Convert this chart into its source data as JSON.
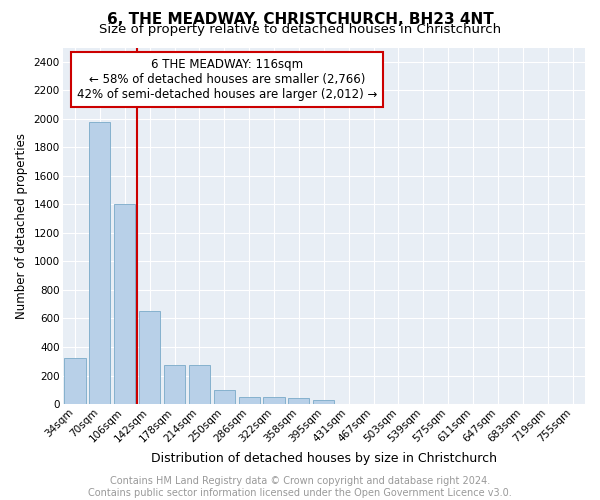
{
  "title": "6, THE MEADWAY, CHRISTCHURCH, BH23 4NT",
  "subtitle": "Size of property relative to detached houses in Christchurch",
  "xlabel": "Distribution of detached houses by size in Christchurch",
  "ylabel": "Number of detached properties",
  "bar_labels": [
    "34sqm",
    "70sqm",
    "106sqm",
    "142sqm",
    "178sqm",
    "214sqm",
    "250sqm",
    "286sqm",
    "322sqm",
    "358sqm",
    "395sqm",
    "431sqm",
    "467sqm",
    "503sqm",
    "539sqm",
    "575sqm",
    "611sqm",
    "647sqm",
    "683sqm",
    "719sqm",
    "755sqm"
  ],
  "bar_values": [
    325,
    1975,
    1400,
    650,
    275,
    275,
    100,
    50,
    50,
    40,
    25,
    0,
    0,
    0,
    0,
    0,
    0,
    0,
    0,
    0,
    0
  ],
  "bar_color": "#b8d0e8",
  "bar_edge_color": "#7aaac8",
  "ylim": [
    0,
    2500
  ],
  "yticks": [
    0,
    200,
    400,
    600,
    800,
    1000,
    1200,
    1400,
    1600,
    1800,
    2000,
    2200,
    2400
  ],
  "vline_color": "#cc0000",
  "vline_x": 2.5,
  "annotation_line1": "6 THE MEADWAY: 116sqm",
  "annotation_line2": "← 58% of detached houses are smaller (2,766)",
  "annotation_line3": "42% of semi-detached houses are larger (2,012) →",
  "annotation_box_color": "#ffffff",
  "annotation_box_edge": "#cc0000",
  "footer_text": "Contains HM Land Registry data © Crown copyright and database right 2024.\nContains public sector information licensed under the Open Government Licence v3.0.",
  "bg_color": "#e8eef5",
  "grid_color": "#ffffff",
  "title_fontsize": 11,
  "subtitle_fontsize": 9.5,
  "xlabel_fontsize": 9,
  "ylabel_fontsize": 8.5,
  "tick_fontsize": 7.5,
  "footer_fontsize": 7,
  "annotation_fontsize": 8.5
}
